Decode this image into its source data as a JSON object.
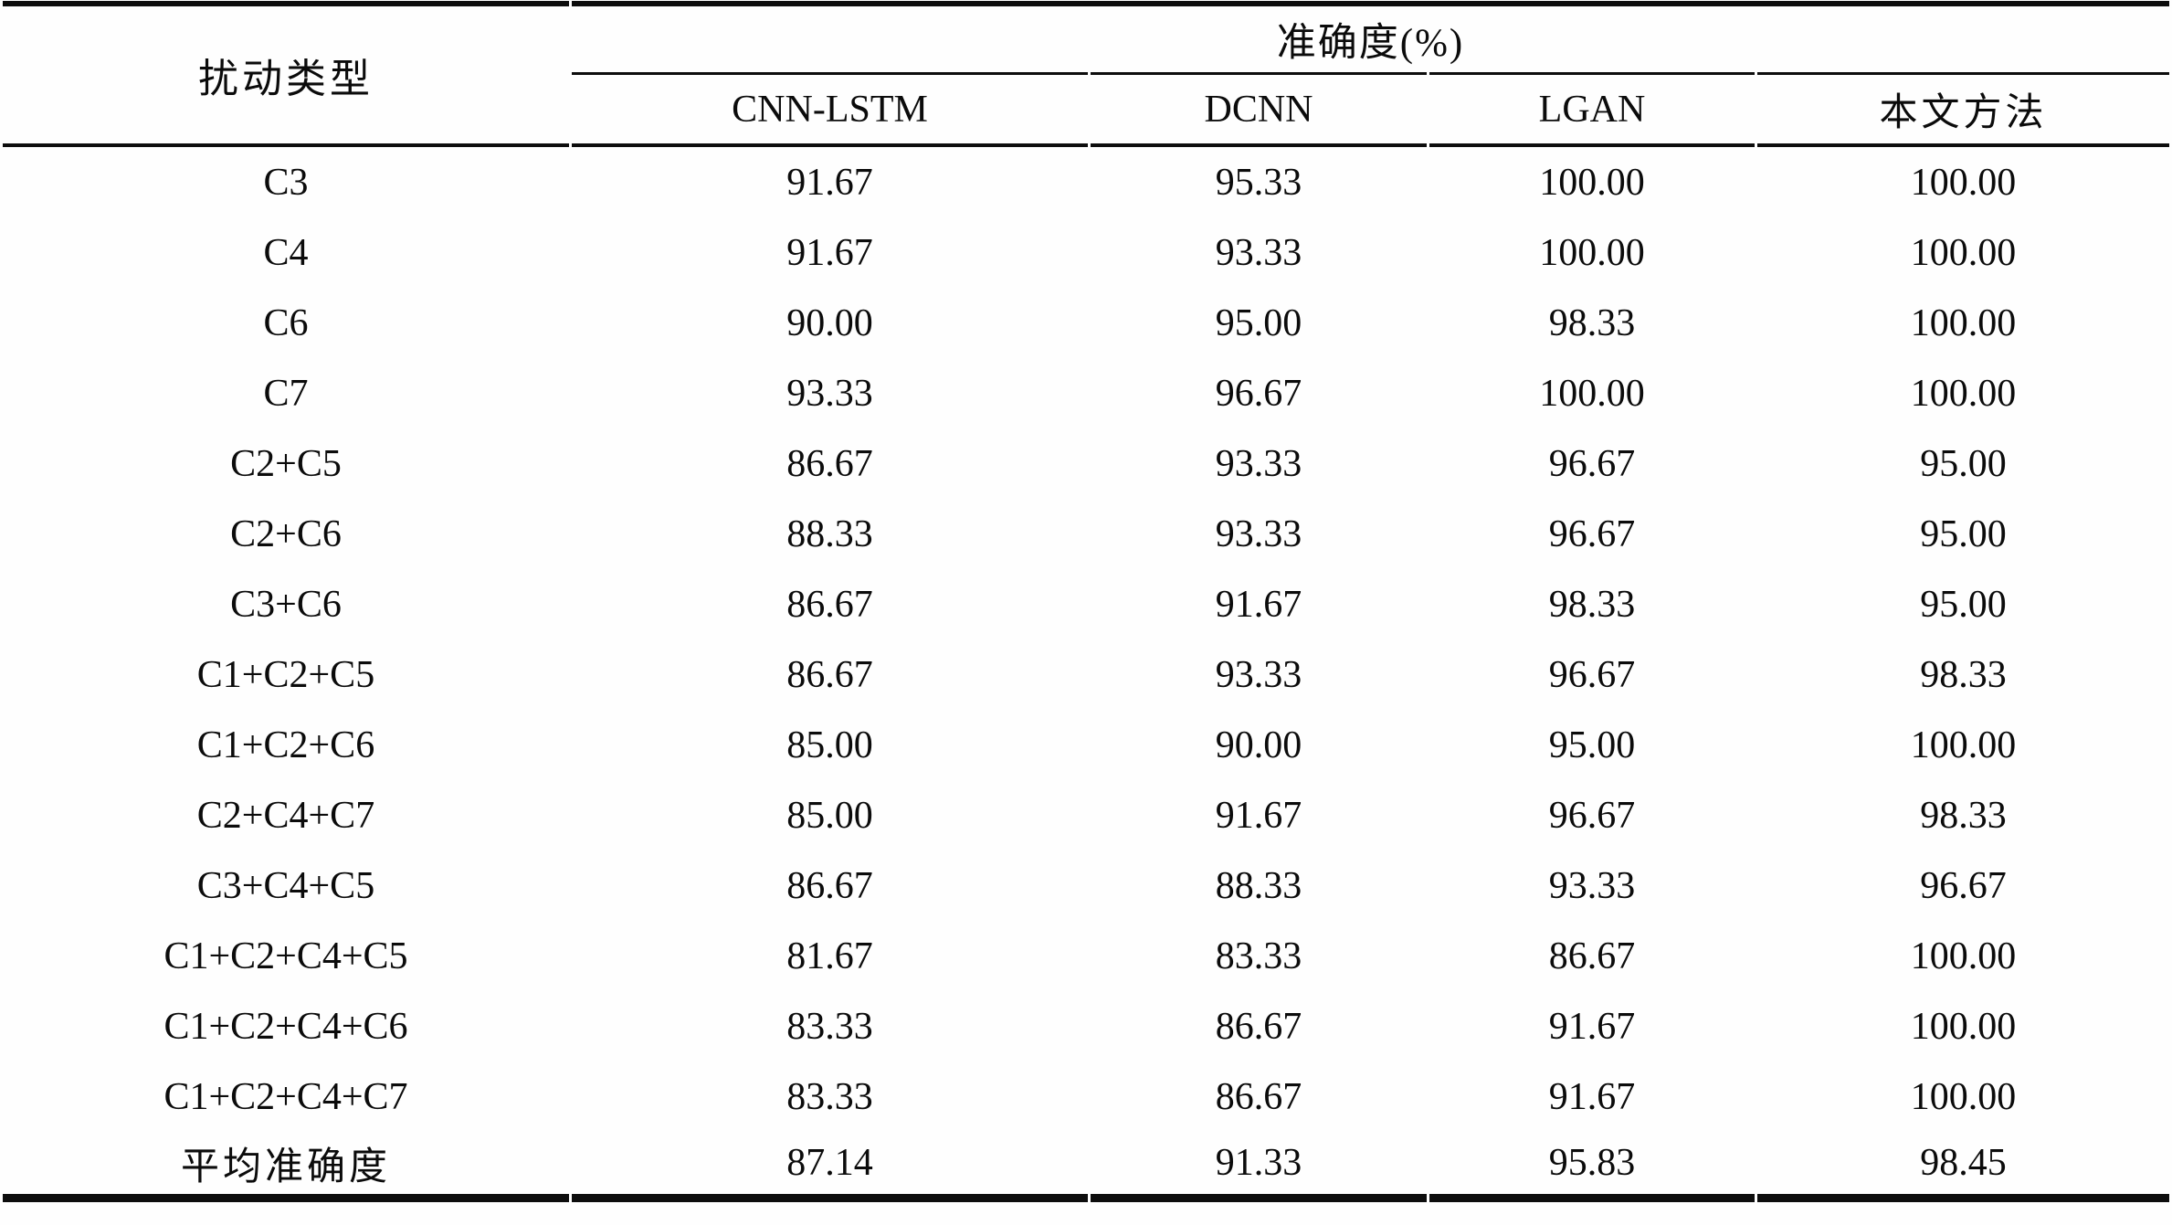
{
  "table": {
    "row_header": "扰动类型",
    "span_header": "准确度(%)",
    "method_columns": [
      "CNN-LSTM",
      "DCNN",
      "LGAN",
      "本文方法"
    ],
    "rows": [
      {
        "type": "C3",
        "values": [
          "91.67",
          "95.33",
          "100.00",
          "100.00"
        ]
      },
      {
        "type": "C4",
        "values": [
          "91.67",
          "93.33",
          "100.00",
          "100.00"
        ]
      },
      {
        "type": "C6",
        "values": [
          "90.00",
          "95.00",
          "98.33",
          "100.00"
        ]
      },
      {
        "type": "C7",
        "values": [
          "93.33",
          "96.67",
          "100.00",
          "100.00"
        ]
      },
      {
        "type": "C2+C5",
        "values": [
          "86.67",
          "93.33",
          "96.67",
          "95.00"
        ]
      },
      {
        "type": "C2+C6",
        "values": [
          "88.33",
          "93.33",
          "96.67",
          "95.00"
        ]
      },
      {
        "type": "C3+C6",
        "values": [
          "86.67",
          "91.67",
          "98.33",
          "95.00"
        ]
      },
      {
        "type": "C1+C2+C5",
        "values": [
          "86.67",
          "93.33",
          "96.67",
          "98.33"
        ]
      },
      {
        "type": "C1+C2+C6",
        "values": [
          "85.00",
          "90.00",
          "95.00",
          "100.00"
        ]
      },
      {
        "type": "C2+C4+C7",
        "values": [
          "85.00",
          "91.67",
          "96.67",
          "98.33"
        ]
      },
      {
        "type": "C3+C4+C5",
        "values": [
          "86.67",
          "88.33",
          "93.33",
          "96.67"
        ]
      },
      {
        "type": "C1+C2+C4+C5",
        "values": [
          "81.67",
          "83.33",
          "86.67",
          "100.00"
        ]
      },
      {
        "type": "C1+C2+C4+C6",
        "values": [
          "83.33",
          "86.67",
          "91.67",
          "100.00"
        ]
      },
      {
        "type": "C1+C2+C4+C7",
        "values": [
          "83.33",
          "86.67",
          "91.67",
          "100.00"
        ]
      },
      {
        "type": "平均准确度",
        "values": [
          "87.14",
          "91.33",
          "95.83",
          "98.45"
        ]
      }
    ],
    "colors": {
      "rule": "#0d0d0d",
      "text": "#0b0b0b",
      "background": "#fefefe"
    }
  }
}
